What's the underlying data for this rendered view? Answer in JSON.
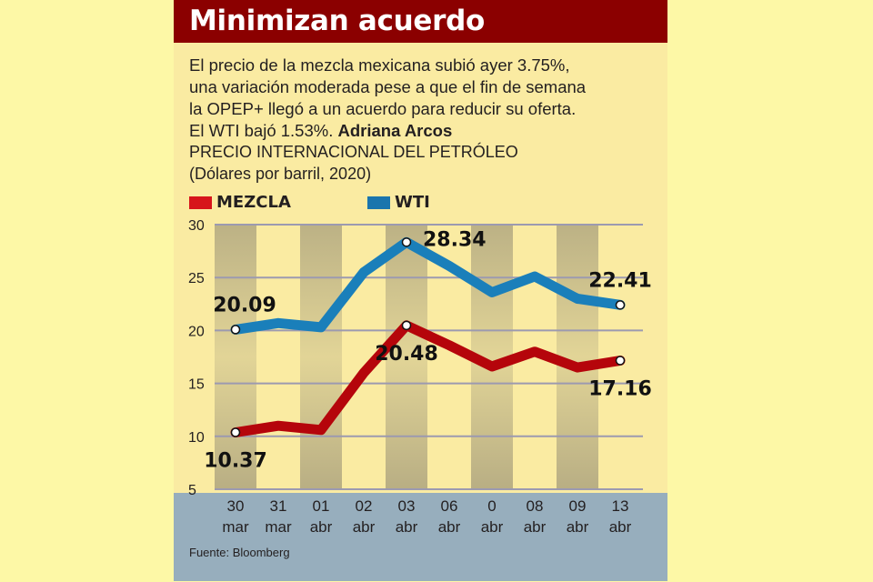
{
  "header": {
    "title": "Minimizan acuerdo"
  },
  "intro": {
    "lines": [
      "El precio de la mezcla mexicana subió ayer 3.75%,",
      "una variación moderada pese a que el fin de semana",
      "la OPEP+ llegó a un acuerdo para reducir su oferta.",
      "El WTI bajó 1.53%."
    ],
    "author": "Adriana Arcos"
  },
  "chart_title": {
    "line1": "PRECIO INTERNACIONAL DEL PETRÓLEO",
    "line2": "(Dólares por barril, 2020)"
  },
  "source": "Fuente: Bloomberg",
  "colors": {
    "header": "#8b0000",
    "mezcla": "#b5050b",
    "mezcla_swatch": "#d7151b",
    "wti": "#1a7fba",
    "wti_swatch": "#1a75ad",
    "panel": "#faeba2",
    "shade": "#b5ab82",
    "footer": "#97aebd",
    "page": "#fdf8a6"
  },
  "chart_data": {
    "type": "line",
    "title": "PRECIO INTERNACIONAL DEL PETRÓLEO",
    "subtitle": "(Dólares por barril, 2020)",
    "xlabel": "",
    "ylabel": "Dólares por barril",
    "ylim": [
      5,
      30
    ],
    "yticks": [
      30,
      25,
      20,
      15,
      10,
      5
    ],
    "grid": true,
    "legend": "top-left",
    "categories": [
      [
        "30",
        "mar"
      ],
      [
        "31",
        "mar"
      ],
      [
        "01",
        "abr"
      ],
      [
        "02",
        "abr"
      ],
      [
        "03",
        "abr"
      ],
      [
        "06",
        "abr"
      ],
      [
        "0",
        "abr"
      ],
      [
        "08",
        "abr"
      ],
      [
        "09",
        "abr"
      ],
      [
        "13",
        "abr"
      ]
    ],
    "shaded_columns": [
      0,
      2,
      4,
      6,
      8
    ],
    "series": [
      {
        "name": "MEZCLA",
        "color": "#b5050b",
        "values": [
          10.37,
          11.0,
          10.6,
          16.0,
          20.48,
          18.6,
          16.6,
          18.0,
          16.5,
          17.16
        ],
        "labels": [
          {
            "index": 0,
            "text": "10.37",
            "position": "below"
          },
          {
            "index": 4,
            "text": "20.48",
            "position": "below"
          },
          {
            "index": 9,
            "text": "17.16",
            "position": "below"
          }
        ],
        "markers": [
          0,
          4,
          9
        ]
      },
      {
        "name": "WTI",
        "color": "#1a7fba",
        "values": [
          20.09,
          20.7,
          20.3,
          25.5,
          28.34,
          26.1,
          23.6,
          25.1,
          23.0,
          22.41
        ],
        "labels": [
          {
            "index": 0,
            "text": "20.09",
            "position": "above"
          },
          {
            "index": 4,
            "text": "28.34",
            "position": "right"
          },
          {
            "index": 9,
            "text": "22.41",
            "position": "above"
          }
        ],
        "markers": [
          0,
          4,
          9
        ]
      }
    ]
  }
}
